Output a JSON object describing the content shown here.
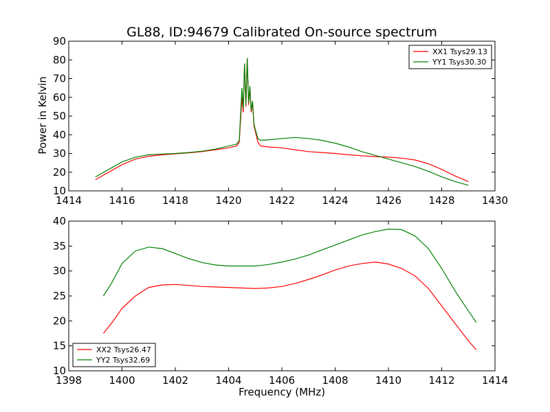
{
  "title": "GL88, ID:94679 Calibrated On-source spectrum",
  "chart_data": [
    {
      "type": "line",
      "ylabel": "Power in Kelvin",
      "xlabel": "",
      "xlim": [
        1414,
        1430
      ],
      "ylim": [
        10,
        90
      ],
      "xticks": [
        1414,
        1416,
        1418,
        1420,
        1422,
        1424,
        1426,
        1428,
        1430
      ],
      "yticks": [
        10,
        20,
        30,
        40,
        50,
        60,
        70,
        80,
        90
      ],
      "legend": "top-right",
      "series": [
        {
          "name": "XX1 Tsys29.13",
          "color": "#ff0000",
          "x": [
            1415.0,
            1415.5,
            1416.0,
            1416.5,
            1417.0,
            1417.5,
            1418.0,
            1418.5,
            1419.0,
            1419.5,
            1420.0,
            1420.3,
            1420.4,
            1420.5,
            1420.55,
            1420.6,
            1420.65,
            1420.7,
            1420.75,
            1420.8,
            1420.85,
            1420.9,
            1420.95,
            1421.0,
            1421.1,
            1421.2,
            1421.5,
            1422.0,
            1422.5,
            1423.0,
            1423.5,
            1424.0,
            1424.5,
            1425.0,
            1425.5,
            1426.0,
            1426.5,
            1427.0,
            1427.5,
            1428.0,
            1428.5,
            1429.0
          ],
          "y": [
            16,
            20,
            24,
            27,
            28.5,
            29.3,
            29.8,
            30.3,
            31,
            32,
            33,
            34,
            36,
            60,
            52,
            78,
            55,
            81,
            56,
            65,
            52,
            57,
            45,
            42,
            36,
            34,
            33.5,
            33,
            32,
            31,
            30.5,
            30,
            29.3,
            28.8,
            28.3,
            28,
            27.5,
            26.5,
            24.5,
            21.5,
            18,
            15
          ]
        },
        {
          "name": "YY1 Tsys30.30",
          "color": "#008000",
          "x": [
            1415.0,
            1415.5,
            1416.0,
            1416.5,
            1417.0,
            1417.5,
            1418.0,
            1418.5,
            1419.0,
            1419.5,
            1420.0,
            1420.3,
            1420.4,
            1420.5,
            1420.55,
            1420.6,
            1420.65,
            1420.7,
            1420.75,
            1420.8,
            1420.85,
            1420.9,
            1420.95,
            1421.0,
            1421.1,
            1421.2,
            1421.5,
            1422.0,
            1422.5,
            1423.0,
            1423.5,
            1424.0,
            1424.5,
            1425.0,
            1425.5,
            1426.0,
            1426.5,
            1427.0,
            1427.5,
            1428.0,
            1428.5,
            1429.0
          ],
          "y": [
            17.5,
            21.5,
            25.5,
            28,
            29.3,
            29.7,
            30,
            30.5,
            31.2,
            32.3,
            34,
            35,
            37,
            65,
            54,
            78,
            56,
            81,
            57,
            66,
            53,
            58,
            46,
            43,
            38,
            37,
            37.3,
            38,
            38.5,
            38,
            37,
            35.5,
            33.5,
            31,
            29,
            27,
            25,
            23,
            20.5,
            17.5,
            15,
            13
          ]
        }
      ]
    },
    {
      "type": "line",
      "ylabel": "",
      "xlabel": "Frequency (MHz)",
      "xlim": [
        1398,
        1414
      ],
      "ylim": [
        10,
        40
      ],
      "xticks": [
        1398,
        1400,
        1402,
        1404,
        1406,
        1408,
        1410,
        1412,
        1414
      ],
      "yticks": [
        10,
        15,
        20,
        25,
        30,
        35,
        40
      ],
      "legend": "bottom-left",
      "series": [
        {
          "name": "XX2 Tsys26.47",
          "color": "#ff0000",
          "x": [
            1399.3,
            1399.6,
            1400.0,
            1400.5,
            1401.0,
            1401.5,
            1402.0,
            1402.5,
            1403.0,
            1403.5,
            1404.0,
            1404.5,
            1405.0,
            1405.5,
            1406.0,
            1406.5,
            1407.0,
            1407.5,
            1408.0,
            1408.5,
            1409.0,
            1409.5,
            1410.0,
            1410.5,
            1411.0,
            1411.5,
            1412.0,
            1412.5,
            1413.0,
            1413.3
          ],
          "y": [
            17.5,
            19.5,
            22.5,
            25,
            26.7,
            27.2,
            27.3,
            27.1,
            26.9,
            26.8,
            26.7,
            26.6,
            26.5,
            26.6,
            26.9,
            27.5,
            28.3,
            29.2,
            30.2,
            31,
            31.5,
            31.8,
            31.4,
            30.5,
            29,
            26.5,
            23,
            19.5,
            16,
            14.2
          ]
        },
        {
          "name": "YY2 Tsys32.69",
          "color": "#008000",
          "x": [
            1399.3,
            1399.6,
            1400.0,
            1400.5,
            1401.0,
            1401.5,
            1402.0,
            1402.5,
            1403.0,
            1403.5,
            1404.0,
            1404.5,
            1405.0,
            1405.5,
            1406.0,
            1406.5,
            1407.0,
            1407.5,
            1408.0,
            1408.5,
            1409.0,
            1409.5,
            1410.0,
            1410.5,
            1411.0,
            1411.5,
            1412.0,
            1412.5,
            1413.0,
            1413.3
          ],
          "y": [
            25,
            27.5,
            31.5,
            34,
            34.8,
            34.5,
            33.5,
            32.5,
            31.7,
            31.2,
            31,
            31,
            31,
            31.3,
            31.8,
            32.4,
            33.2,
            34.2,
            35.2,
            36.2,
            37.2,
            37.9,
            38.4,
            38.3,
            37,
            34.5,
            30.5,
            26,
            22,
            19.7
          ]
        }
      ]
    }
  ]
}
